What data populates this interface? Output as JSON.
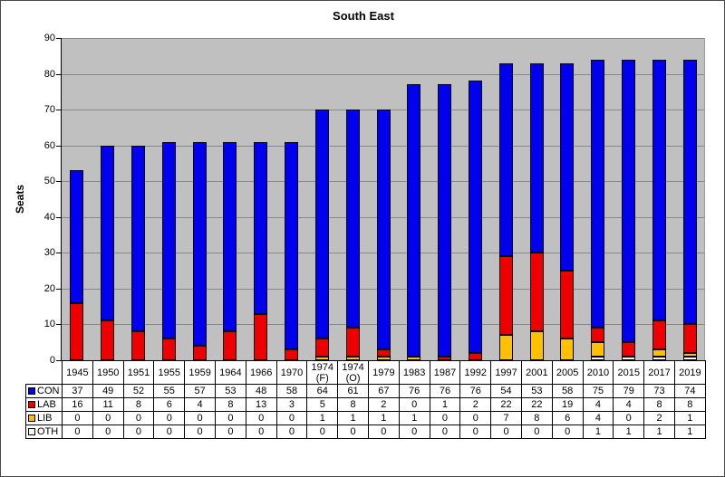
{
  "chart": {
    "title": "South East",
    "ylabel": "Seats"
  },
  "chart_data": {
    "type": "bar",
    "stacked": true,
    "title": "South East",
    "xlabel": "",
    "ylabel": "Seats",
    "ylim": [
      0,
      90
    ],
    "y_tick_step": 10,
    "grid": "horizontal",
    "plot_bg": "#C0C0C0",
    "gridline_color": "#888888",
    "legend_position": "table-left-below",
    "categories": [
      "1945",
      "1950",
      "1951",
      "1955",
      "1959",
      "1964",
      "1966",
      "1970",
      "1974 (F)",
      "1974 (O)",
      "1979",
      "1983",
      "1987",
      "1992",
      "1997",
      "2001",
      "2005",
      "2010",
      "2015",
      "2017",
      "2019"
    ],
    "series": [
      {
        "name": "CON",
        "color": "#0000EE",
        "values": [
          37,
          49,
          52,
          55,
          57,
          53,
          48,
          58,
          64,
          61,
          67,
          76,
          76,
          76,
          54,
          53,
          58,
          75,
          79,
          73,
          74
        ]
      },
      {
        "name": "LAB",
        "color": "#EE0000",
        "values": [
          16,
          11,
          8,
          6,
          4,
          8,
          13,
          3,
          5,
          8,
          2,
          0,
          1,
          2,
          22,
          22,
          19,
          4,
          4,
          8,
          8
        ]
      },
      {
        "name": "LIB",
        "color": "#FFC000",
        "values": [
          0,
          0,
          0,
          0,
          0,
          0,
          0,
          0,
          1,
          1,
          1,
          1,
          0,
          0,
          7,
          8,
          6,
          4,
          0,
          2,
          1
        ]
      },
      {
        "name": "OTH",
        "color": "#EAFBEF",
        "values": [
          0,
          0,
          0,
          0,
          0,
          0,
          0,
          0,
          0,
          0,
          0,
          0,
          0,
          0,
          0,
          0,
          0,
          1,
          1,
          1,
          1
        ]
      }
    ],
    "stack_order_bottom_to_top": [
      "OTH",
      "LIB",
      "LAB",
      "CON"
    ]
  }
}
